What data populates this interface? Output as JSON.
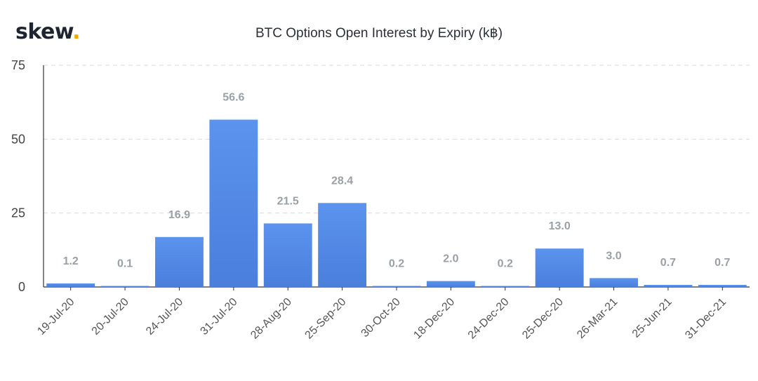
{
  "brand": {
    "name": "skew",
    "dot": "."
  },
  "colors": {
    "bar_top": "#5b93ee",
    "bar_bottom": "#4a7fdc",
    "accent": "#f2a900"
  },
  "chart_data": {
    "type": "bar",
    "title": "BTC Options Open Interest by Expiry (k฿)",
    "xlabel": "",
    "ylabel": "",
    "ylim": [
      0,
      75
    ],
    "yticks": [
      0,
      25,
      50,
      75
    ],
    "grid": true,
    "categories": [
      "19-Jul-20",
      "20-Jul-20",
      "24-Jul-20",
      "31-Jul-20",
      "28-Aug-20",
      "25-Sep-20",
      "30-Oct-20",
      "18-Dec-20",
      "24-Dec-20",
      "25-Dec-20",
      "26-Mar-21",
      "25-Jun-21",
      "31-Dec-21"
    ],
    "values": [
      1.2,
      0.1,
      16.9,
      56.6,
      21.5,
      28.4,
      0.2,
      2.0,
      0.2,
      13.0,
      3.0,
      0.7,
      0.7
    ],
    "data_labels": [
      "1.2",
      "0.1",
      "16.9",
      "56.6",
      "21.5",
      "28.4",
      "0.2",
      "2.0",
      "0.2",
      "13.0",
      "3.0",
      "0.7",
      "0.7"
    ]
  }
}
